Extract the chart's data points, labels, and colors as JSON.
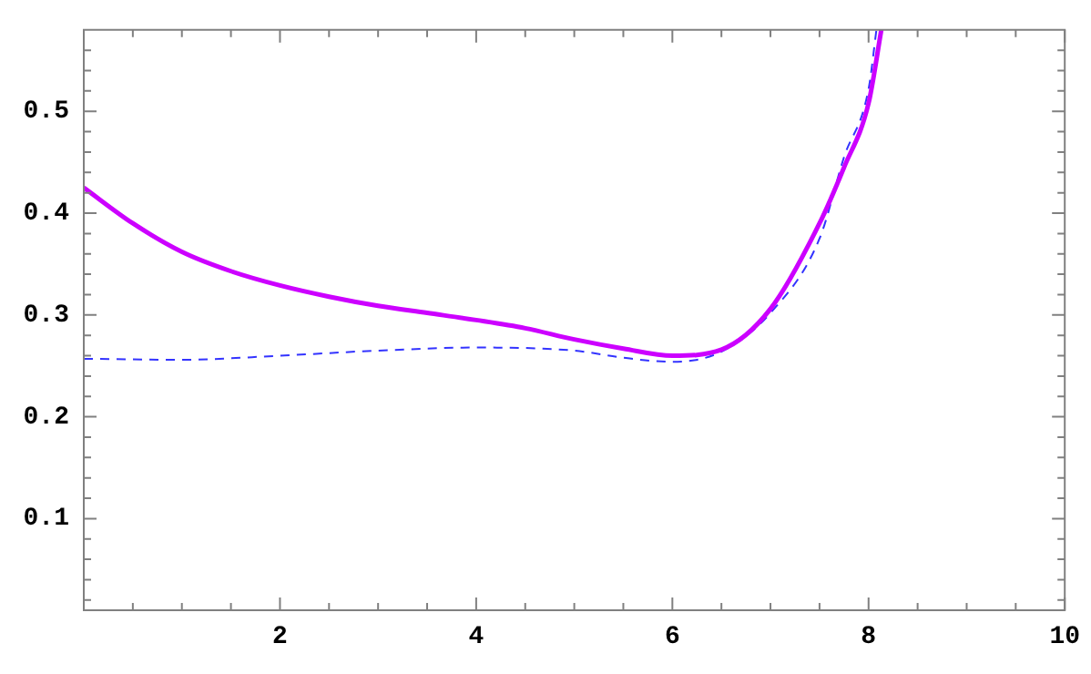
{
  "chart_data": {
    "type": "line",
    "xlim": [
      0,
      10
    ],
    "ylim": [
      0.01,
      0.58
    ],
    "xticks": [
      {
        "value": 0.5,
        "label": null
      },
      {
        "value": 1,
        "label": null
      },
      {
        "value": 1.5,
        "label": null
      },
      2,
      {
        "value": 2.5,
        "label": null
      },
      {
        "value": 3,
        "label": null
      },
      {
        "value": 3.5,
        "label": null
      },
      4,
      {
        "value": 4.5,
        "label": null
      },
      {
        "value": 5,
        "label": null
      },
      {
        "value": 5.5,
        "label": null
      },
      6,
      {
        "value": 6.5,
        "label": null
      },
      {
        "value": 7,
        "label": null
      },
      {
        "value": 7.5,
        "label": null
      },
      8,
      {
        "value": 8.5,
        "label": null
      },
      {
        "value": 9,
        "label": null
      },
      {
        "value": 9.5,
        "label": null
      },
      10
    ],
    "yticks": [
      {
        "value": 0.02,
        "label": null
      },
      {
        "value": 0.04,
        "label": null
      },
      {
        "value": 0.06,
        "label": null
      },
      {
        "value": 0.08,
        "label": null
      },
      {
        "value": 0.1,
        "label": "0.1"
      },
      {
        "value": 0.12,
        "label": null
      },
      {
        "value": 0.14,
        "label": null
      },
      {
        "value": 0.16,
        "label": null
      },
      {
        "value": 0.18,
        "label": null
      },
      {
        "value": 0.2,
        "label": "0.2"
      },
      {
        "value": 0.22,
        "label": null
      },
      {
        "value": 0.24,
        "label": null
      },
      {
        "value": 0.26,
        "label": null
      },
      {
        "value": 0.28,
        "label": null
      },
      {
        "value": 0.3,
        "label": "0.3"
      },
      {
        "value": 0.32,
        "label": null
      },
      {
        "value": 0.34,
        "label": null
      },
      {
        "value": 0.36,
        "label": null
      },
      {
        "value": 0.38,
        "label": null
      },
      {
        "value": 0.4,
        "label": "0.4"
      },
      {
        "value": 0.42,
        "label": null
      },
      {
        "value": 0.44,
        "label": null
      },
      {
        "value": 0.46,
        "label": null
      },
      {
        "value": 0.48,
        "label": null
      },
      {
        "value": 0.5,
        "label": "0.5"
      },
      {
        "value": 0.52,
        "label": null
      },
      {
        "value": 0.54,
        "label": null
      },
      {
        "value": 0.56,
        "label": null
      }
    ],
    "grid": false,
    "legend": false,
    "marker": "none",
    "series": [
      {
        "color": "#cc00ff",
        "line_style": "solid",
        "x": [
          0,
          0.5,
          1,
          1.5,
          2,
          2.5,
          3,
          3.5,
          4,
          4.5,
          5,
          5.5,
          6,
          6.5,
          7,
          7.5,
          7.75,
          8,
          8.13
        ],
        "values": [
          0.425,
          0.39,
          0.362,
          0.343,
          0.329,
          0.318,
          0.309,
          0.302,
          0.295,
          0.287,
          0.276,
          0.267,
          0.26,
          0.266,
          0.306,
          0.39,
          0.445,
          0.508,
          0.58
        ]
      },
      {
        "color": "#3333ff",
        "line_style": "dashed",
        "x": [
          0,
          1,
          2,
          3,
          4,
          5,
          5.5,
          6,
          6.5,
          7,
          7.5,
          7.75,
          8,
          8.08
        ],
        "values": [
          0.257,
          0.256,
          0.26,
          0.265,
          0.268,
          0.265,
          0.258,
          0.254,
          0.264,
          0.302,
          0.375,
          0.455,
          0.522,
          0.58
        ]
      }
    ]
  }
}
